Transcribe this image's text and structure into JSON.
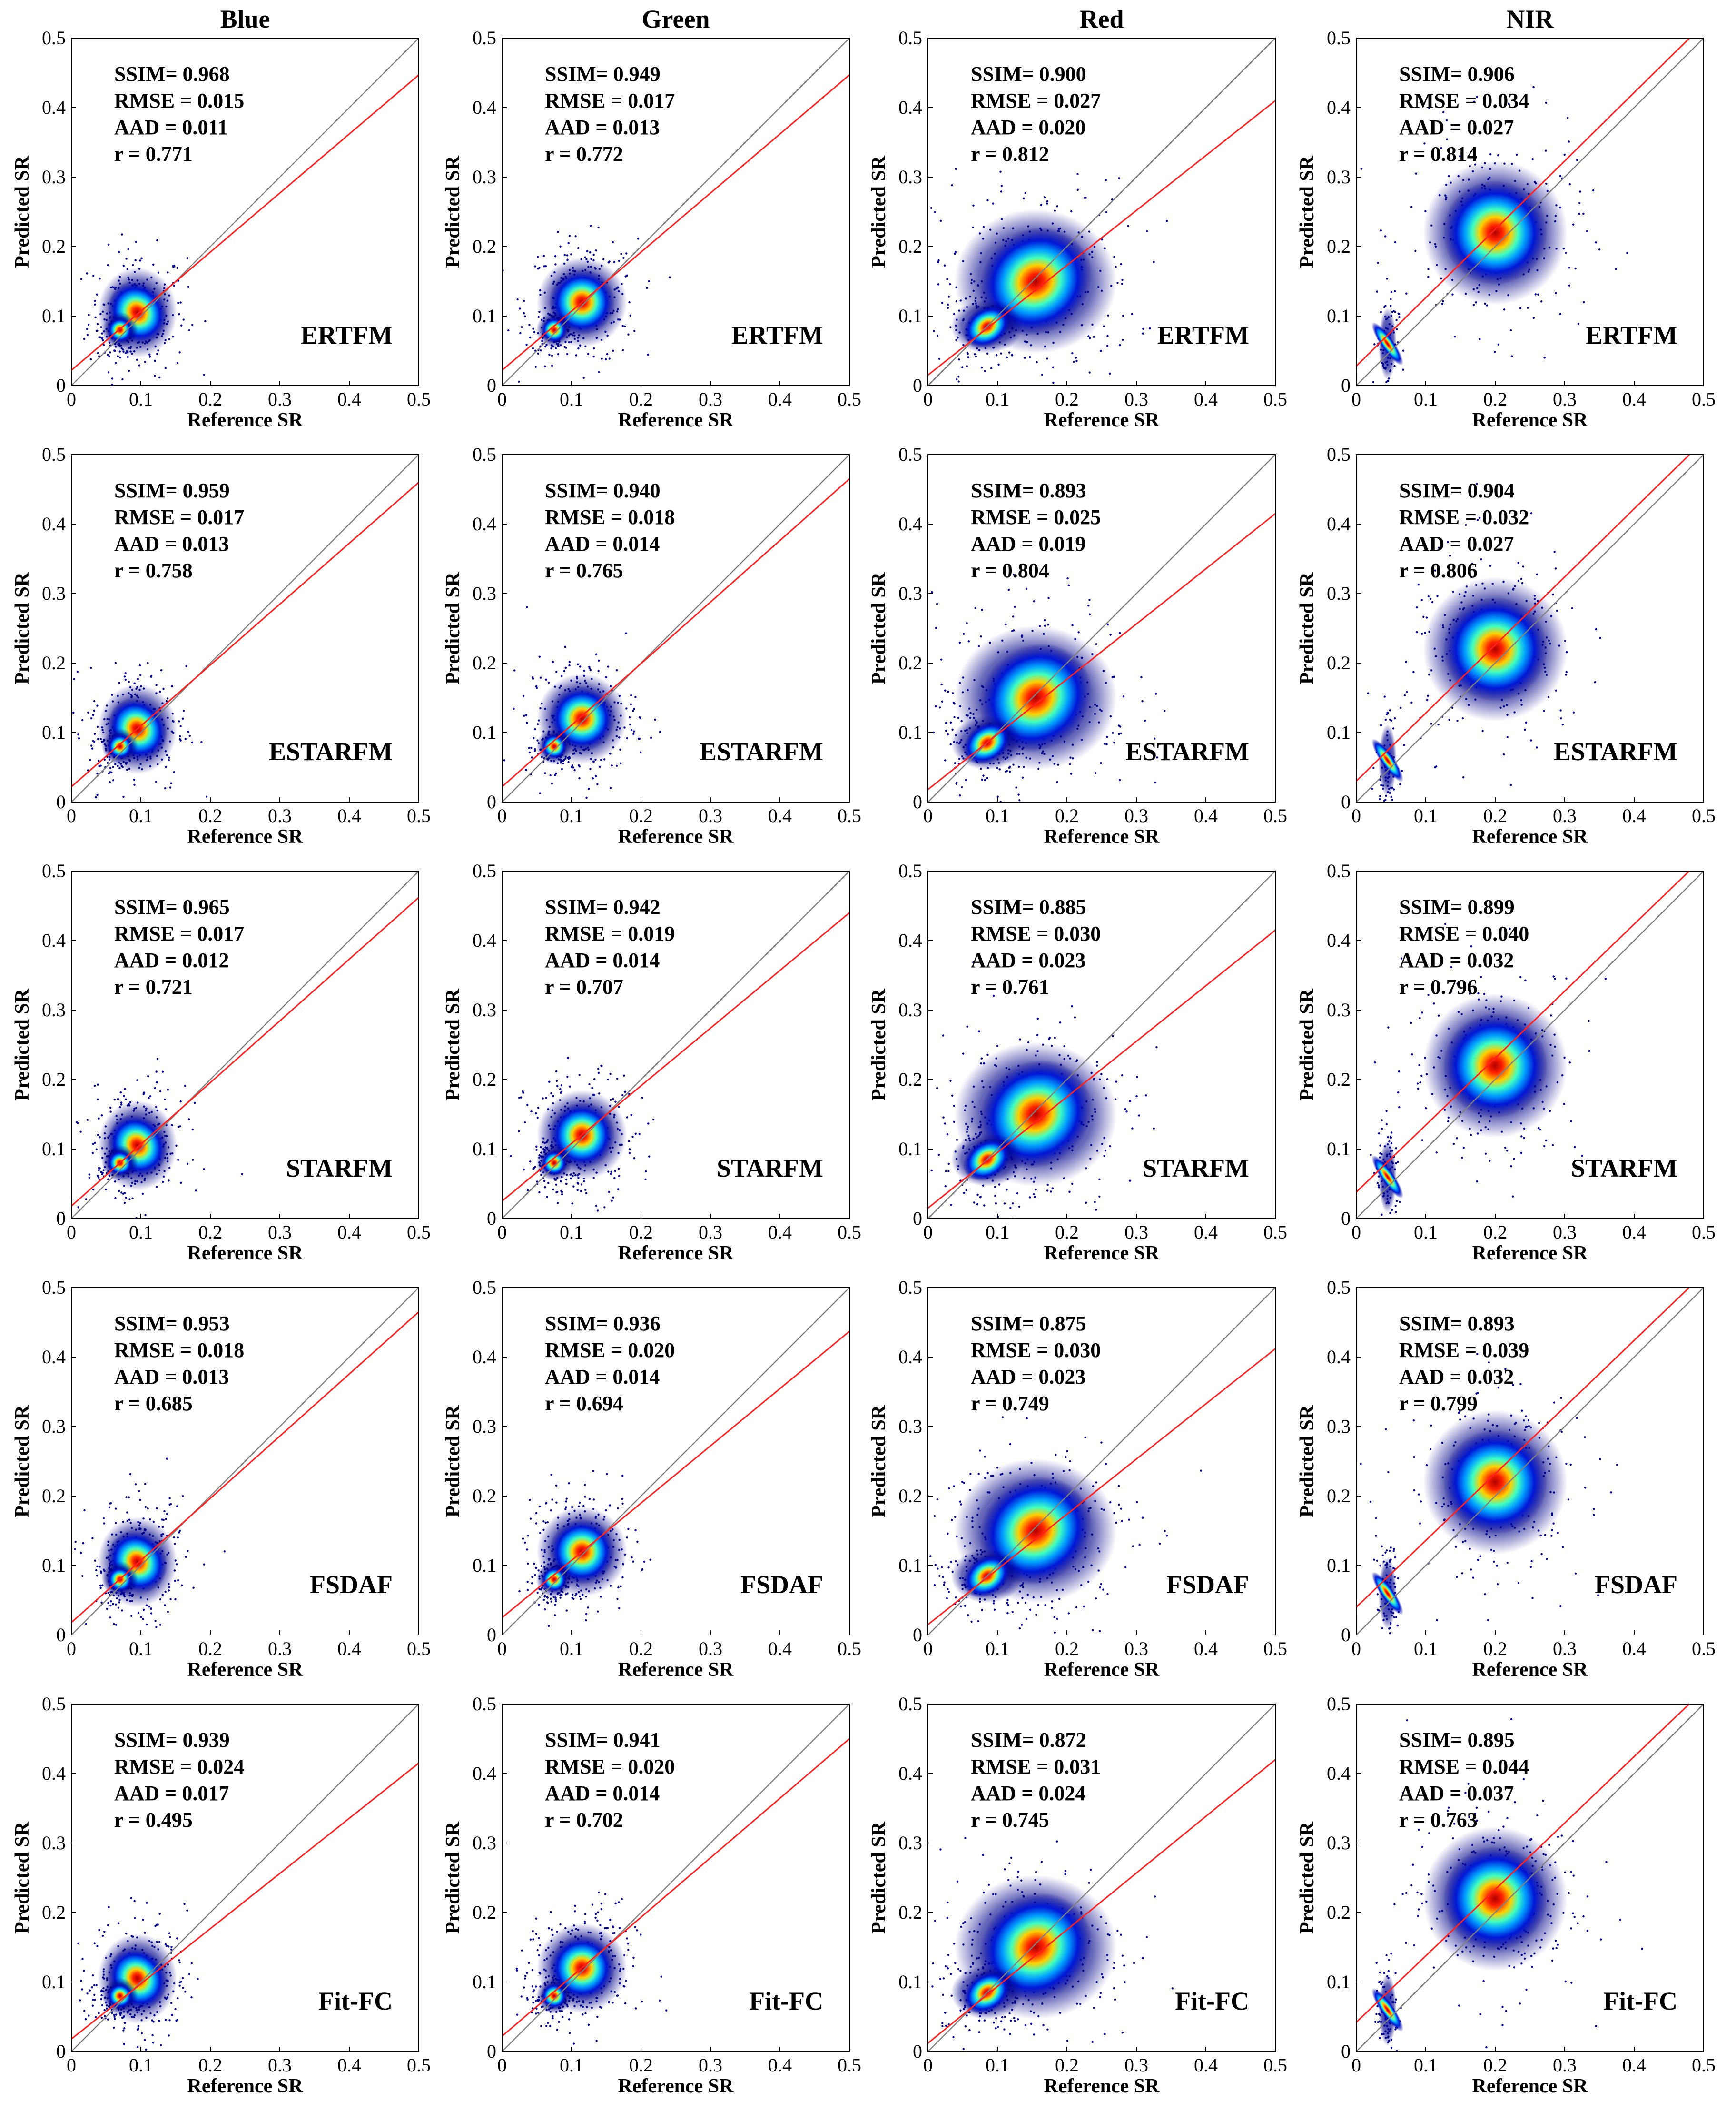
{
  "figure": {
    "columns": [
      "Blue",
      "Green",
      "Red",
      "NIR"
    ],
    "methods": [
      "ERTFM",
      "ESTARFM",
      "STARFM",
      "FSDAF",
      "Fit-FC"
    ],
    "colors": {
      "fit_line": "#ff2020",
      "identity_line": "#808080",
      "density_low": "#00008b",
      "density_high": "#ff0000"
    }
  },
  "chart_data": [
    {
      "type": "scatter",
      "band": "Blue",
      "method": "ERTFM",
      "xlabel": "Reference SR",
      "ylabel": "Predicted SR",
      "xlim": [
        0,
        0.5
      ],
      "ylim": [
        0,
        0.5
      ],
      "ticks": [
        "0",
        "0.1",
        "0.2",
        "0.3",
        "0.4",
        "0.5"
      ],
      "stats": {
        "ssim": "SSIM= 0.968",
        "rmse": "RMSE = 0.015",
        "aad": "AAD = 0.011",
        "r": "r =  0.771"
      },
      "fit_line": [
        [
          0,
          0.022
        ],
        [
          0.5,
          0.447
        ]
      ]
    },
    {
      "type": "scatter",
      "band": "Green",
      "method": "ERTFM",
      "xlabel": "Reference SR",
      "ylabel": "Predicted SR",
      "xlim": [
        0,
        0.5
      ],
      "ylim": [
        0,
        0.5
      ],
      "ticks": [
        "0",
        "0.1",
        "0.2",
        "0.3",
        "0.4",
        "0.5"
      ],
      "stats": {
        "ssim": "SSIM= 0.949",
        "rmse": "RMSE = 0.017",
        "aad": "AAD = 0.013",
        "r": "r =  0.772"
      },
      "fit_line": [
        [
          0,
          0.022
        ],
        [
          0.5,
          0.447
        ]
      ]
    },
    {
      "type": "scatter",
      "band": "Red",
      "method": "ERTFM",
      "xlabel": "Reference SR",
      "ylabel": "Predicted SR",
      "xlim": [
        0,
        0.5
      ],
      "ylim": [
        0,
        0.5
      ],
      "ticks": [
        "0",
        "0.1",
        "0.2",
        "0.3",
        "0.4",
        "0.5"
      ],
      "stats": {
        "ssim": "SSIM= 0.900",
        "rmse": "RMSE = 0.027",
        "aad": "AAD = 0.020",
        "r": "r =  0.812"
      },
      "fit_line": [
        [
          0,
          0.015
        ],
        [
          0.5,
          0.41
        ]
      ]
    },
    {
      "type": "scatter",
      "band": "NIR",
      "method": "ERTFM",
      "xlabel": "Reference SR",
      "ylabel": "Predicted SR",
      "xlim": [
        0,
        0.5
      ],
      "ylim": [
        0,
        0.5
      ],
      "ticks": [
        "0",
        "0.1",
        "0.2",
        "0.3",
        "0.4",
        "0.5"
      ],
      "stats": {
        "ssim": "SSIM= 0.906",
        "rmse": "RMSE = 0.034",
        "aad": "AAD = 0.027",
        "r": "r =  0.814"
      },
      "fit_line": [
        [
          0,
          0.028
        ],
        [
          0.5,
          0.52
        ]
      ]
    },
    {
      "type": "scatter",
      "band": "Blue",
      "method": "ESTARFM",
      "xlabel": "Reference SR",
      "ylabel": "Predicted SR",
      "xlim": [
        0,
        0.5
      ],
      "ylim": [
        0,
        0.5
      ],
      "ticks": [
        "0",
        "0.1",
        "0.2",
        "0.3",
        "0.4",
        "0.5"
      ],
      "stats": {
        "ssim": "SSIM= 0.959",
        "rmse": "RMSE = 0.017",
        "aad": "AAD = 0.013",
        "r": "r =  0.758"
      },
      "fit_line": [
        [
          0,
          0.022
        ],
        [
          0.5,
          0.46
        ]
      ]
    },
    {
      "type": "scatter",
      "band": "Green",
      "method": "ESTARFM",
      "xlabel": "Reference SR",
      "ylabel": "Predicted SR",
      "xlim": [
        0,
        0.5
      ],
      "ylim": [
        0,
        0.5
      ],
      "ticks": [
        "0",
        "0.1",
        "0.2",
        "0.3",
        "0.4",
        "0.5"
      ],
      "stats": {
        "ssim": "SSIM= 0.940",
        "rmse": "RMSE = 0.018",
        "aad": "AAD = 0.014",
        "r": "r =  0.765"
      },
      "fit_line": [
        [
          0,
          0.022
        ],
        [
          0.5,
          0.465
        ]
      ]
    },
    {
      "type": "scatter",
      "band": "Red",
      "method": "ESTARFM",
      "xlabel": "Reference SR",
      "ylabel": "Predicted SR",
      "xlim": [
        0,
        0.5
      ],
      "ylim": [
        0,
        0.5
      ],
      "ticks": [
        "0",
        "0.1",
        "0.2",
        "0.3",
        "0.4",
        "0.5"
      ],
      "stats": {
        "ssim": "SSIM= 0.893",
        "rmse": "RMSE = 0.025",
        "aad": "AAD = 0.019",
        "r": "r =  0.804"
      },
      "fit_line": [
        [
          0,
          0.018
        ],
        [
          0.5,
          0.415
        ]
      ]
    },
    {
      "type": "scatter",
      "band": "NIR",
      "method": "ESTARFM",
      "xlabel": "Reference SR",
      "ylabel": "Predicted SR",
      "xlim": [
        0,
        0.5
      ],
      "ylim": [
        0,
        0.5
      ],
      "ticks": [
        "0",
        "0.1",
        "0.2",
        "0.3",
        "0.4",
        "0.5"
      ],
      "stats": {
        "ssim": "SSIM= 0.904",
        "rmse": "RMSE = 0.032",
        "aad": "AAD = 0.027",
        "r": "r =  0.806"
      },
      "fit_line": [
        [
          0,
          0.03
        ],
        [
          0.5,
          0.52
        ]
      ]
    },
    {
      "type": "scatter",
      "band": "Blue",
      "method": "STARFM",
      "xlabel": "Reference SR",
      "ylabel": "Predicted SR",
      "xlim": [
        0,
        0.5
      ],
      "ylim": [
        0,
        0.5
      ],
      "ticks": [
        "0",
        "0.1",
        "0.2",
        "0.3",
        "0.4",
        "0.5"
      ],
      "stats": {
        "ssim": "SSIM= 0.965",
        "rmse": "RMSE = 0.017",
        "aad": "AAD = 0.012",
        "r": "r =  0.721"
      },
      "fit_line": [
        [
          0,
          0.018
        ],
        [
          0.5,
          0.462
        ]
      ]
    },
    {
      "type": "scatter",
      "band": "Green",
      "method": "STARFM",
      "xlabel": "Reference SR",
      "ylabel": "Predicted SR",
      "xlim": [
        0,
        0.5
      ],
      "ylim": [
        0,
        0.5
      ],
      "ticks": [
        "0",
        "0.1",
        "0.2",
        "0.3",
        "0.4",
        "0.5"
      ],
      "stats": {
        "ssim": "SSIM= 0.942",
        "rmse": "RMSE = 0.019",
        "aad": "AAD = 0.014",
        "r": "r =  0.707"
      },
      "fit_line": [
        [
          0,
          0.025
        ],
        [
          0.5,
          0.44
        ]
      ]
    },
    {
      "type": "scatter",
      "band": "Red",
      "method": "STARFM",
      "xlabel": "Reference SR",
      "ylabel": "Predicted SR",
      "xlim": [
        0,
        0.5
      ],
      "ylim": [
        0,
        0.5
      ],
      "ticks": [
        "0",
        "0.1",
        "0.2",
        "0.3",
        "0.4",
        "0.5"
      ],
      "stats": {
        "ssim": "SSIM= 0.885",
        "rmse": "RMSE = 0.030",
        "aad": "AAD = 0.023",
        "r": "r =  0.761"
      },
      "fit_line": [
        [
          0,
          0.015
        ],
        [
          0.5,
          0.415
        ]
      ]
    },
    {
      "type": "scatter",
      "band": "NIR",
      "method": "STARFM",
      "xlabel": "Reference SR",
      "ylabel": "Predicted SR",
      "xlim": [
        0,
        0.5
      ],
      "ylim": [
        0,
        0.5
      ],
      "ticks": [
        "0",
        "0.1",
        "0.2",
        "0.3",
        "0.4",
        "0.5"
      ],
      "stats": {
        "ssim": "SSIM= 0.899",
        "rmse": "RMSE = 0.040",
        "aad": "AAD = 0.032",
        "r": "r =  0.796"
      },
      "fit_line": [
        [
          0,
          0.038
        ],
        [
          0.5,
          0.52
        ]
      ]
    },
    {
      "type": "scatter",
      "band": "Blue",
      "method": "FSDAF",
      "xlabel": "Reference SR",
      "ylabel": "Predicted SR",
      "xlim": [
        0,
        0.5
      ],
      "ylim": [
        0,
        0.5
      ],
      "ticks": [
        "0",
        "0.1",
        "0.2",
        "0.3",
        "0.4",
        "0.5"
      ],
      "stats": {
        "ssim": "SSIM= 0.953",
        "rmse": "RMSE = 0.018",
        "aad": "AAD = 0.013",
        "r": "r =  0.685"
      },
      "fit_line": [
        [
          0,
          0.018
        ],
        [
          0.5,
          0.465
        ]
      ]
    },
    {
      "type": "scatter",
      "band": "Green",
      "method": "FSDAF",
      "xlabel": "Reference SR",
      "ylabel": "Predicted SR",
      "xlim": [
        0,
        0.5
      ],
      "ylim": [
        0,
        0.5
      ],
      "ticks": [
        "0",
        "0.1",
        "0.2",
        "0.3",
        "0.4",
        "0.5"
      ],
      "stats": {
        "ssim": "SSIM= 0.936",
        "rmse": "RMSE = 0.020",
        "aad": "AAD = 0.014",
        "r": "r =  0.694"
      },
      "fit_line": [
        [
          0,
          0.025
        ],
        [
          0.5,
          0.437
        ]
      ]
    },
    {
      "type": "scatter",
      "band": "Red",
      "method": "FSDAF",
      "xlabel": "Reference SR",
      "ylabel": "Predicted SR",
      "xlim": [
        0,
        0.5
      ],
      "ylim": [
        0,
        0.5
      ],
      "ticks": [
        "0",
        "0.1",
        "0.2",
        "0.3",
        "0.4",
        "0.5"
      ],
      "stats": {
        "ssim": "SSIM= 0.875",
        "rmse": "RMSE = 0.030",
        "aad": "AAD = 0.023",
        "r": "r =  0.749"
      },
      "fit_line": [
        [
          0,
          0.015
        ],
        [
          0.5,
          0.412
        ]
      ]
    },
    {
      "type": "scatter",
      "band": "NIR",
      "method": "FSDAF",
      "xlabel": "Reference SR",
      "ylabel": "Predicted SR",
      "xlim": [
        0,
        0.5
      ],
      "ylim": [
        0,
        0.5
      ],
      "ticks": [
        "0",
        "0.1",
        "0.2",
        "0.3",
        "0.4",
        "0.5"
      ],
      "stats": {
        "ssim": "SSIM= 0.893",
        "rmse": "RMSE = 0.039",
        "aad": "AAD = 0.032",
        "r": "r =  0.799"
      },
      "fit_line": [
        [
          0,
          0.04
        ],
        [
          0.5,
          0.52
        ]
      ]
    },
    {
      "type": "scatter",
      "band": "Blue",
      "method": "Fit-FC",
      "xlabel": "Reference SR",
      "ylabel": "Predicted SR",
      "xlim": [
        0,
        0.5
      ],
      "ylim": [
        0,
        0.5
      ],
      "ticks": [
        "0",
        "0.1",
        "0.2",
        "0.3",
        "0.4",
        "0.5"
      ],
      "stats": {
        "ssim": "SSIM= 0.939",
        "rmse": "RMSE = 0.024",
        "aad": "AAD = 0.017",
        "r": "r =  0.495"
      },
      "fit_line": [
        [
          0,
          0.018
        ],
        [
          0.5,
          0.415
        ]
      ]
    },
    {
      "type": "scatter",
      "band": "Green",
      "method": "Fit-FC",
      "xlabel": "Reference SR",
      "ylabel": "Predicted SR",
      "xlim": [
        0,
        0.5
      ],
      "ylim": [
        0,
        0.5
      ],
      "ticks": [
        "0",
        "0.1",
        "0.2",
        "0.3",
        "0.4",
        "0.5"
      ],
      "stats": {
        "ssim": "SSIM= 0.941",
        "rmse": "RMSE = 0.020",
        "aad": "AAD = 0.014",
        "r": "r =  0.702"
      },
      "fit_line": [
        [
          0,
          0.022
        ],
        [
          0.5,
          0.45
        ]
      ]
    },
    {
      "type": "scatter",
      "band": "Red",
      "method": "Fit-FC",
      "xlabel": "Reference SR",
      "ylabel": "Predicted SR",
      "xlim": [
        0,
        0.5
      ],
      "ylim": [
        0,
        0.5
      ],
      "ticks": [
        "0",
        "0.1",
        "0.2",
        "0.3",
        "0.4",
        "0.5"
      ],
      "stats": {
        "ssim": "SSIM= 0.872",
        "rmse": "RMSE = 0.031",
        "aad": "AAD = 0.024",
        "r": "r =  0.745"
      },
      "fit_line": [
        [
          0,
          0.012
        ],
        [
          0.5,
          0.42
        ]
      ]
    },
    {
      "type": "scatter",
      "band": "NIR",
      "method": "Fit-FC",
      "xlabel": "Reference SR",
      "ylabel": "Predicted SR",
      "xlim": [
        0,
        0.5
      ],
      "ylim": [
        0,
        0.5
      ],
      "ticks": [
        "0",
        "0.1",
        "0.2",
        "0.3",
        "0.4",
        "0.5"
      ],
      "stats": {
        "ssim": "SSIM= 0.895",
        "rmse": "RMSE = 0.044",
        "aad": "AAD = 0.037",
        "r": "r =  0.763"
      },
      "fit_line": [
        [
          0,
          0.042
        ],
        [
          0.5,
          0.52
        ]
      ]
    }
  ]
}
